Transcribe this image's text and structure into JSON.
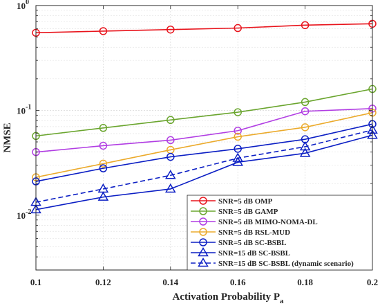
{
  "chart_data": {
    "type": "line",
    "title": "",
    "xlabel": "Activation Probability P",
    "xlabel_subscript": "a",
    "ylabel": "NMSE",
    "yscale": "log",
    "xlim": [
      0.1,
      0.2
    ],
    "ylim": [
      0.003,
      1
    ],
    "grid": true,
    "legend_position": "bottom-right",
    "x": [
      0.1,
      0.12,
      0.14,
      0.16,
      0.18,
      0.2
    ],
    "x_tick_labels": [
      "0.1",
      "0.12",
      "0.14",
      "0.16",
      "0.18",
      "0.2"
    ],
    "y_ticks": [
      {
        "value": 1,
        "mantissa": "10",
        "exponent": "0"
      },
      {
        "value": 0.1,
        "mantissa": "10",
        "exponent": "-1"
      },
      {
        "value": 0.01,
        "mantissa": "10",
        "exponent": "-2"
      }
    ],
    "series": [
      {
        "name": "SNR=5 dB OMP",
        "color": "#e8131b",
        "marker": "circle",
        "dash": "solid",
        "values": [
          0.55,
          0.57,
          0.59,
          0.61,
          0.65,
          0.67
        ]
      },
      {
        "name": "SNR=5 dB GAMP",
        "color": "#6aa52e",
        "marker": "circle",
        "dash": "solid",
        "values": [
          0.057,
          0.068,
          0.081,
          0.096,
          0.12,
          0.16
        ]
      },
      {
        "name": "SNR=5 dB MIMO-NOMA-DL",
        "color": "#b13de3",
        "marker": "circle",
        "dash": "solid",
        "values": [
          0.04,
          0.046,
          0.052,
          0.064,
          0.098,
          0.104
        ]
      },
      {
        "name": "SNR=5 dB RSL-MUD",
        "color": "#ebaa2b",
        "marker": "circle",
        "dash": "solid",
        "values": [
          0.023,
          0.031,
          0.042,
          0.056,
          0.069,
          0.095
        ]
      },
      {
        "name": "SNR=5 dB SC-BSBL",
        "color": "#0b1ec4",
        "marker": "circle",
        "dash": "solid",
        "values": [
          0.021,
          0.028,
          0.036,
          0.043,
          0.053,
          0.074
        ]
      },
      {
        "name": "SNR=15 dB SC-BSBL",
        "color": "#0b1ec4",
        "marker": "triangle",
        "dash": "solid",
        "values": [
          0.0113,
          0.0149,
          0.0178,
          0.032,
          0.039,
          0.058
        ]
      },
      {
        "name": "SNR=15 dB SC-BSBL (dynamic scenario)",
        "color": "#0b1ec4",
        "marker": "triangle",
        "dash": "dashed",
        "values": [
          0.0133,
          0.0178,
          0.024,
          0.035,
          0.045,
          0.065
        ]
      }
    ]
  }
}
